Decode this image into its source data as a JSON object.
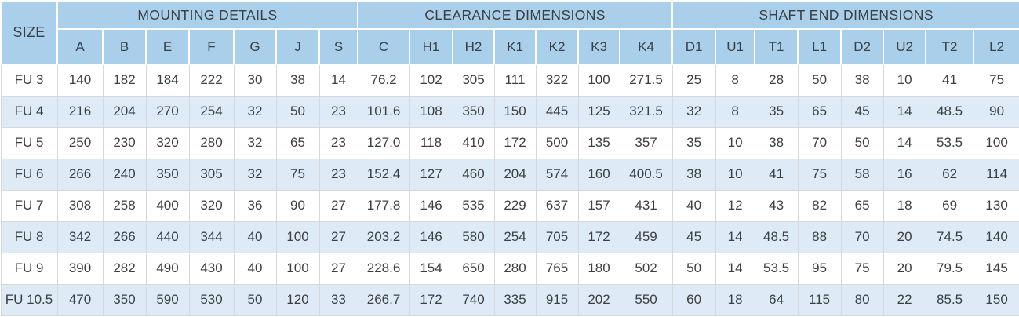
{
  "colors": {
    "header_bg": "#a9cfea",
    "row_alt_bg": "#deebf7",
    "row_bg": "#ffffff",
    "text": "#3b4043",
    "cell_border": "#d5d9dc",
    "header_separator": "#fdfdfd"
  },
  "table": {
    "size_header": "SIZE",
    "groups": [
      {
        "label": "MOUNTING DETAILS",
        "columns": [
          "A",
          "B",
          "E",
          "F",
          "G",
          "J",
          "S"
        ]
      },
      {
        "label": "CLEARANCE DIMENSIONS",
        "columns": [
          "C",
          "H1",
          "H2",
          "K1",
          "K2",
          "K3",
          "K4"
        ]
      },
      {
        "label": "SHAFT END DIMENSIONS",
        "columns": [
          "D1",
          "U1",
          "T1",
          "L1",
          "D2",
          "U2",
          "T2",
          "L2"
        ]
      }
    ],
    "rows": [
      {
        "size": "FU 3",
        "values": [
          "140",
          "182",
          "184",
          "222",
          "30",
          "38",
          "14",
          "76.2",
          "102",
          "305",
          "111",
          "322",
          "100",
          "271.5",
          "25",
          "8",
          "28",
          "50",
          "38",
          "10",
          "41",
          "75"
        ]
      },
      {
        "size": "FU 4",
        "values": [
          "216",
          "204",
          "270",
          "254",
          "32",
          "50",
          "23",
          "101.6",
          "108",
          "350",
          "150",
          "445",
          "125",
          "321.5",
          "32",
          "8",
          "35",
          "65",
          "45",
          "14",
          "48.5",
          "90"
        ]
      },
      {
        "size": "FU 5",
        "values": [
          "250",
          "230",
          "320",
          "280",
          "32",
          "65",
          "23",
          "127.0",
          "118",
          "410",
          "172",
          "500",
          "135",
          "357",
          "35",
          "10",
          "38",
          "70",
          "50",
          "14",
          "53.5",
          "100"
        ]
      },
      {
        "size": "FU 6",
        "values": [
          "266",
          "240",
          "350",
          "305",
          "32",
          "75",
          "23",
          "152.4",
          "127",
          "460",
          "204",
          "574",
          "160",
          "400.5",
          "38",
          "10",
          "41",
          "75",
          "58",
          "16",
          "62",
          "114"
        ]
      },
      {
        "size": "FU 7",
        "values": [
          "308",
          "258",
          "400",
          "320",
          "36",
          "90",
          "27",
          "177.8",
          "146",
          "535",
          "229",
          "637",
          "157",
          "431",
          "40",
          "12",
          "43",
          "82",
          "65",
          "18",
          "69",
          "130"
        ]
      },
      {
        "size": "FU 8",
        "values": [
          "342",
          "266",
          "440",
          "344",
          "40",
          "100",
          "27",
          "203.2",
          "146",
          "580",
          "254",
          "705",
          "172",
          "459",
          "45",
          "14",
          "48.5",
          "88",
          "70",
          "20",
          "74.5",
          "140"
        ]
      },
      {
        "size": "FU 9",
        "values": [
          "390",
          "282",
          "490",
          "430",
          "40",
          "100",
          "27",
          "228.6",
          "154",
          "650",
          "280",
          "765",
          "180",
          "502",
          "50",
          "14",
          "53.5",
          "95",
          "75",
          "20",
          "79.5",
          "145"
        ]
      },
      {
        "size": "FU 10.5",
        "values": [
          "470",
          "350",
          "590",
          "530",
          "50",
          "120",
          "33",
          "266.7",
          "172",
          "740",
          "335",
          "915",
          "202",
          "550",
          "60",
          "18",
          "64",
          "115",
          "80",
          "22",
          "85.5",
          "150"
        ]
      }
    ]
  }
}
